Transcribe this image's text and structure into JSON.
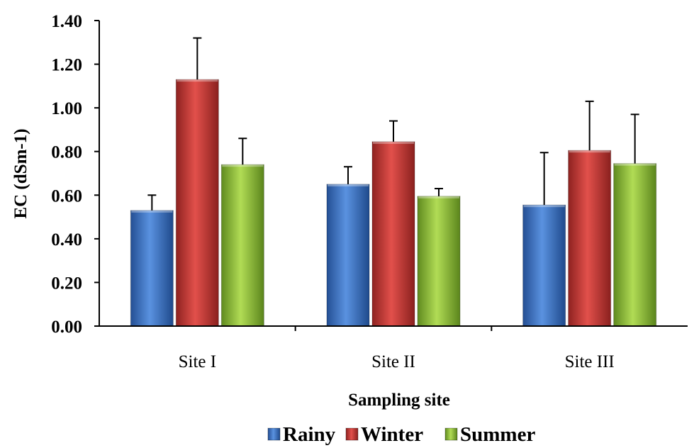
{
  "chart_data": {
    "type": "bar",
    "title": "",
    "xlabel": "Sampling site",
    "ylabel": "EC (dSm-1)",
    "ylim": [
      0,
      1.4
    ],
    "yticks": [
      "0.00",
      "0.20",
      "0.40",
      "0.60",
      "0.80",
      "1.00",
      "1.20",
      "1.40"
    ],
    "grid": false,
    "legend_position": "bottom",
    "categories": [
      "Site I",
      "Site II",
      "Site III"
    ],
    "series": [
      {
        "name": "Rainy",
        "color": "#3a73c9",
        "values": [
          0.53,
          0.65,
          0.555
        ],
        "errors": [
          0.07,
          0.08,
          0.24
        ]
      },
      {
        "name": "Winter",
        "color": "#c83b38",
        "values": [
          1.13,
          0.845,
          0.805
        ],
        "errors": [
          0.19,
          0.095,
          0.225
        ]
      },
      {
        "name": "Summer",
        "color": "#8fbe3a",
        "values": [
          0.74,
          0.595,
          0.745
        ],
        "errors": [
          0.12,
          0.035,
          0.225
        ]
      }
    ]
  }
}
